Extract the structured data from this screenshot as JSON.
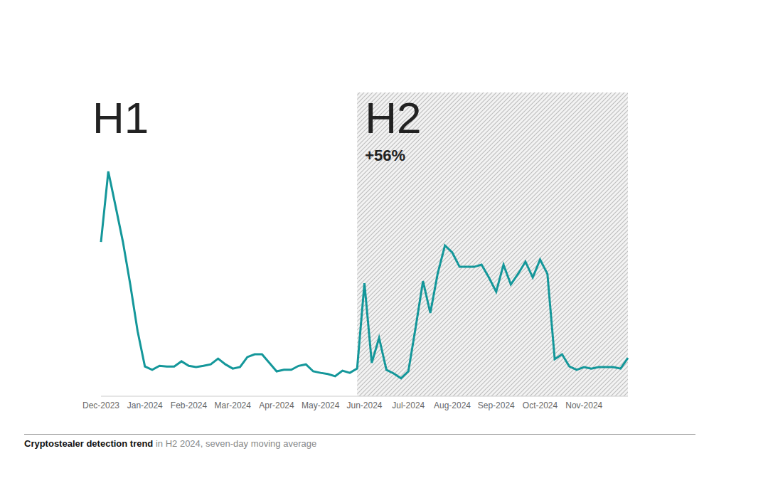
{
  "chart_data": {
    "type": "line",
    "title": "Cryptostealer detection trend",
    "subtitle": "in H2 2024, seven-day moving average",
    "categories": [
      "Dec-2023",
      null,
      null,
      null,
      null,
      null,
      "Jan-2024",
      null,
      null,
      null,
      null,
      null,
      "Feb-2024",
      null,
      null,
      null,
      null,
      null,
      "Mar-2024",
      null,
      null,
      null,
      null,
      null,
      "Apr-2024",
      null,
      null,
      null,
      null,
      null,
      "May-2024",
      null,
      null,
      null,
      null,
      null,
      "Jun-2024",
      null,
      null,
      null,
      null,
      null,
      "Jul-2024",
      null,
      null,
      null,
      null,
      null,
      "Aug-2024",
      null,
      null,
      null,
      null,
      null,
      "Sep-2024",
      null,
      null,
      null,
      null,
      null,
      "Oct-2024",
      null,
      null,
      null,
      null,
      null,
      "Nov-2024",
      null,
      null,
      null,
      null,
      null,
      null
    ],
    "values": [
      50.8,
      74.0,
      62.5,
      50.8,
      36.8,
      21.5,
      9.8,
      8.7,
      10.0,
      9.8,
      9.8,
      11.5,
      10.0,
      9.6,
      10.0,
      10.5,
      12.4,
      10.5,
      9.1,
      9.6,
      12.9,
      13.8,
      13.8,
      11.0,
      8.2,
      8.7,
      8.7,
      10.0,
      10.5,
      8.2,
      7.7,
      7.3,
      6.6,
      8.4,
      7.7,
      9.1,
      37.2,
      11.0,
      19.2,
      8.7,
      7.5,
      5.9,
      8.2,
      22.7,
      37.9,
      27.4,
      40.3,
      49.6,
      47.3,
      42.6,
      42.6,
      42.6,
      43.3,
      39.1,
      34.4,
      43.3,
      36.8,
      40.3,
      44.3,
      39.1,
      45.0,
      40.3,
      12.2,
      13.8,
      9.8,
      8.7,
      9.6,
      9.1,
      9.6,
      9.6,
      9.6,
      9.1,
      12.6
    ],
    "color": "#14979a",
    "ylim": [
      0,
      100
    ],
    "tick_labels": "x",
    "grid": false,
    "annotations": [
      {
        "text": "H1",
        "x": 0
      },
      {
        "text": "H2",
        "subtext": "+56%",
        "x": 35
      }
    ]
  }
}
